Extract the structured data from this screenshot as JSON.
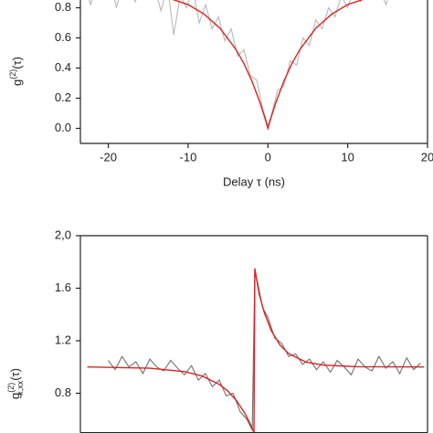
{
  "chart_data": [
    {
      "type": "line",
      "ylabel": [
        "g",
        "(2)",
        "(τ)"
      ],
      "xlabel": "Delay τ (ns)",
      "xlim": [
        -23.5,
        20
      ],
      "xticks": [
        -20,
        -10,
        0,
        10,
        20
      ],
      "ylim": [
        -0.1,
        1.2
      ],
      "yticks": [
        {
          "value": 0,
          "label": "0.0"
        },
        0.2,
        0.4,
        0.6,
        0.8
      ],
      "series": [
        {
          "color": "#b8b8b8",
          "x": [
            -23,
            -22.2,
            -21.4,
            -20.6,
            -19.8,
            -19,
            -18.2,
            -17.4,
            -16.6,
            -15.8,
            -15,
            -14.2,
            -13.4,
            -12.6,
            -11.8,
            -11,
            -10.2,
            -9.4,
            -8.6,
            -7.8,
            -7,
            -6.2,
            -5.4,
            -4.6,
            -3.8,
            -3,
            -2.2,
            -1.4,
            -0.6,
            0,
            0.4,
            1.2,
            2,
            2.8,
            3.6,
            4.4,
            5.2,
            6,
            6.8,
            7.6,
            8.4,
            9.2,
            10,
            10.8,
            11.6,
            12.4,
            13.2,
            14,
            14.8,
            15.6
          ],
          "values": [
            0.95,
            0.82,
            0.98,
            0.88,
            1.02,
            0.8,
            0.96,
            0.9,
            0.84,
            1.0,
            0.86,
            0.93,
            0.78,
            0.95,
            0.62,
            0.88,
            0.8,
            0.92,
            0.7,
            0.82,
            0.66,
            0.74,
            0.58,
            0.66,
            0.48,
            0.52,
            0.35,
            0.32,
            0.12,
            0.02,
            0.08,
            0.25,
            0.28,
            0.45,
            0.42,
            0.6,
            0.55,
            0.72,
            0.66,
            0.8,
            0.74,
            0.88,
            0.8,
            0.94,
            0.84,
            0.98,
            0.86,
            0.92,
            0.82,
            0.96
          ]
        },
        {
          "color": "#e02020",
          "x": [
            -22,
            -18,
            -14,
            -10,
            -8,
            -6,
            -4,
            -3,
            -2,
            -1,
            -0.5,
            0,
            0.5,
            1,
            2,
            3,
            4,
            6,
            8,
            10,
            14,
            18
          ],
          "values": [
            0.938,
            0.924,
            0.892,
            0.821,
            0.758,
            0.664,
            0.523,
            0.429,
            0.313,
            0.172,
            0.09,
            0,
            0.09,
            0.172,
            0.313,
            0.429,
            0.523,
            0.664,
            0.758,
            0.821,
            0.892,
            0.924
          ]
        }
      ]
    },
    {
      "type": "line",
      "ylabel": [
        "g",
        "(2)",
        "x,xx",
        "(τ)"
      ],
      "xlim": [
        -10,
        10
      ],
      "ylim": [
        0.5,
        2.0
      ],
      "yticks": [
        {
          "value": 2,
          "label": "2,0"
        },
        1.6,
        1.2,
        0.8
      ],
      "series": [
        {
          "color": "#707070",
          "x": [
            -8.4,
            -8,
            -7.6,
            -7.2,
            -6.8,
            -6.4,
            -6,
            -5.6,
            -5.2,
            -4.8,
            -4.4,
            -4,
            -3.6,
            -3.2,
            -2.8,
            -2.4,
            -2,
            -1.6,
            -1.2,
            -0.8,
            -0.4,
            -0.1,
            0.05,
            0.2,
            0.5,
            0.8,
            1.2,
            1.6,
            2,
            2.4,
            2.8,
            3.2,
            3.6,
            4,
            4.4,
            4.8,
            5.2,
            5.6,
            6,
            6.4,
            6.8,
            7.2,
            7.6,
            8,
            8.4,
            8.8,
            9.2,
            9.6
          ],
          "values": [
            1.05,
            0.98,
            1.08,
            1.0,
            1.04,
            0.95,
            1.06,
            1.0,
            0.97,
            1.05,
            0.99,
            0.94,
            1.01,
            0.9,
            0.95,
            0.85,
            0.9,
            0.78,
            0.8,
            0.66,
            0.6,
            0.52,
            1.72,
            1.65,
            1.45,
            1.38,
            1.22,
            1.18,
            1.08,
            1.1,
            1.02,
            1.06,
            0.98,
            1.04,
            0.96,
            1.05,
            1.0,
            0.94,
            1.06,
            1.0,
            0.97,
            1.08,
            0.99,
            1.04,
            0.95,
            1.07,
            0.98,
            1.03
          ]
        },
        {
          "color": "#e02020",
          "x": [
            -9.6,
            -6,
            -4,
            -3,
            -2,
            -1.5,
            -1,
            -0.5,
            -0.2,
            0,
            0.05,
            0.3,
            0.6,
            1,
            1.5,
            2,
            3,
            4,
            6,
            9.8
          ],
          "values": [
            1.0,
            0.991,
            0.965,
            0.932,
            0.868,
            0.816,
            0.743,
            0.642,
            0.562,
            0.5,
            1.75,
            1.556,
            1.412,
            1.276,
            1.167,
            1.102,
            1.037,
            1.014,
            1.002,
            1.0
          ]
        }
      ]
    }
  ]
}
